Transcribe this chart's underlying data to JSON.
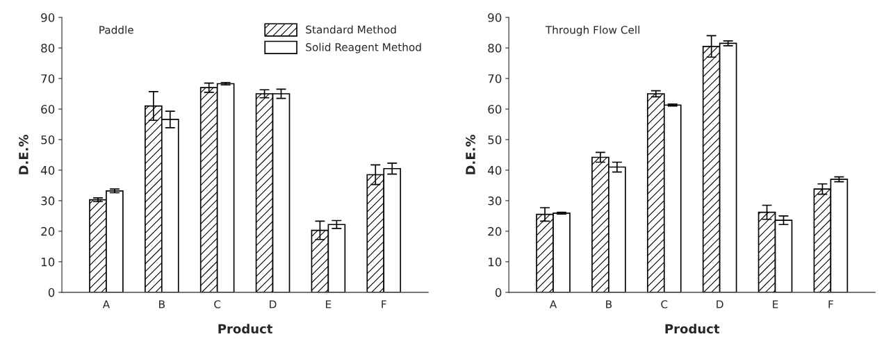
{
  "chart_data": [
    {
      "type": "bar",
      "xlabel": "Product",
      "ylabel": "D.E.%",
      "annotations": [
        "Paddle"
      ],
      "categories": [
        "A",
        "B",
        "C",
        "D",
        "E",
        "F"
      ],
      "ylim": [
        0,
        90
      ],
      "yticks": [
        0,
        10,
        20,
        30,
        40,
        50,
        60,
        70,
        80,
        90
      ],
      "grid": false,
      "legend": "top right",
      "series": [
        {
          "name": "Standard Method",
          "color": "#000000",
          "values": [
            30.3,
            61,
            67,
            65,
            20.3,
            38.5
          ],
          "errors": [
            0.6,
            4.7,
            1.5,
            1.3,
            3.0,
            3.2
          ]
        },
        {
          "name": "Solid Reagent Method",
          "color": "#ffffff",
          "values": [
            33.2,
            56.6,
            68.3,
            65,
            22.2,
            40.5
          ],
          "errors": [
            0.6,
            2.7,
            0.4,
            1.5,
            1.3,
            1.8
          ]
        }
      ]
    },
    {
      "type": "bar",
      "xlabel": "Product",
      "ylabel": "D.E.%",
      "annotations": [
        "Through Flow Cell"
      ],
      "categories": [
        "A",
        "B",
        "C",
        "D",
        "E",
        "F"
      ],
      "ylim": [
        0,
        90
      ],
      "yticks": [
        0,
        10,
        20,
        30,
        40,
        50,
        60,
        70,
        80,
        90
      ],
      "grid": false,
      "legend": false,
      "series": [
        {
          "color": "#000000",
          "values": [
            25.5,
            44.2,
            65,
            80.5,
            26.2,
            33.8
          ],
          "errors": [
            2.2,
            1.6,
            1,
            3.5,
            2.3,
            1.7
          ]
        },
        {
          "color": "#ffffff",
          "values": [
            25.9,
            41,
            61.3,
            81.5,
            23.6,
            37
          ],
          "errors": [
            0.3,
            1.6,
            0.3,
            0.8,
            1.4,
            0.8
          ]
        }
      ]
    }
  ]
}
